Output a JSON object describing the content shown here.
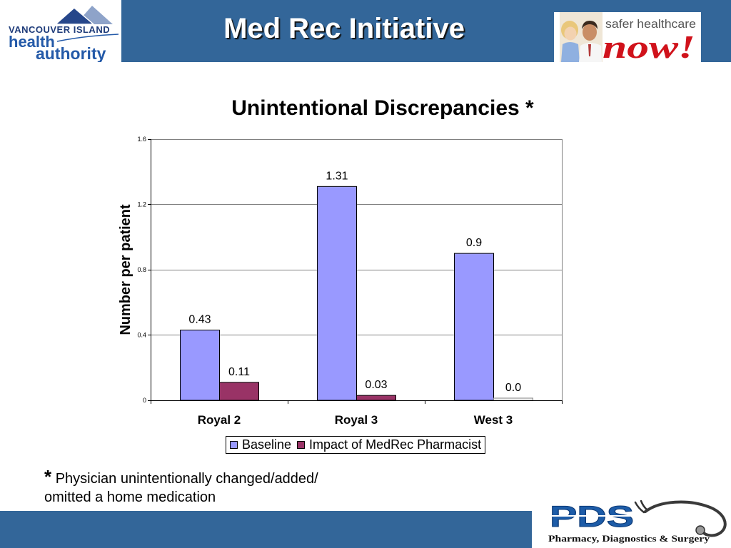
{
  "slide": {
    "title": "Med Rec Initiative",
    "colors": {
      "banner": "#336699",
      "footer_bar": "#336699",
      "title_text": "#ffffff"
    }
  },
  "logos": {
    "viha": {
      "line1": "VANCOUVER ISLAND",
      "line2": "health",
      "line3": "authority",
      "icon": "mountains-icon",
      "color": "#2359a8"
    },
    "safer_healthcare_now": {
      "line1": "safer healthcare",
      "line2": "now!",
      "icon": "doctor-child-photo",
      "accent": "#d0121b"
    },
    "pds": {
      "mark": "PDS",
      "tagline": "Pharmacy, Diagnostics & Surgery",
      "icon": "stethoscope-icon",
      "color": "#1d5ca8"
    }
  },
  "chart_data": {
    "type": "bar",
    "title": "Unintentional Discrepancies *",
    "ylabel": "Number per patient",
    "categories": [
      "Royal 2",
      "Royal 3",
      "West 3"
    ],
    "series": [
      {
        "name": "Baseline",
        "values": [
          0.43,
          1.31,
          0.9
        ],
        "labels": [
          "0.43",
          "1.31",
          "0.9"
        ],
        "color": "#9999ff"
      },
      {
        "name": "Impact of MedRec Pharmacist",
        "values": [
          0.11,
          0.03,
          0.0
        ],
        "labels": [
          "0.11",
          "0.03",
          "0.0"
        ],
        "color": "#993366"
      }
    ],
    "ylim": [
      0,
      1.6
    ],
    "yticks": [
      0,
      0.4,
      0.8,
      1.2,
      1.6
    ],
    "ytick_labels": [
      "0",
      "0.4",
      "0.8",
      "1.2",
      "1.6"
    ],
    "grid": true,
    "legend": "bottom"
  },
  "footnote": {
    "marker": "*",
    "line1": "Physician unintentionally changed/added/",
    "line2": "omitted a home medication"
  }
}
